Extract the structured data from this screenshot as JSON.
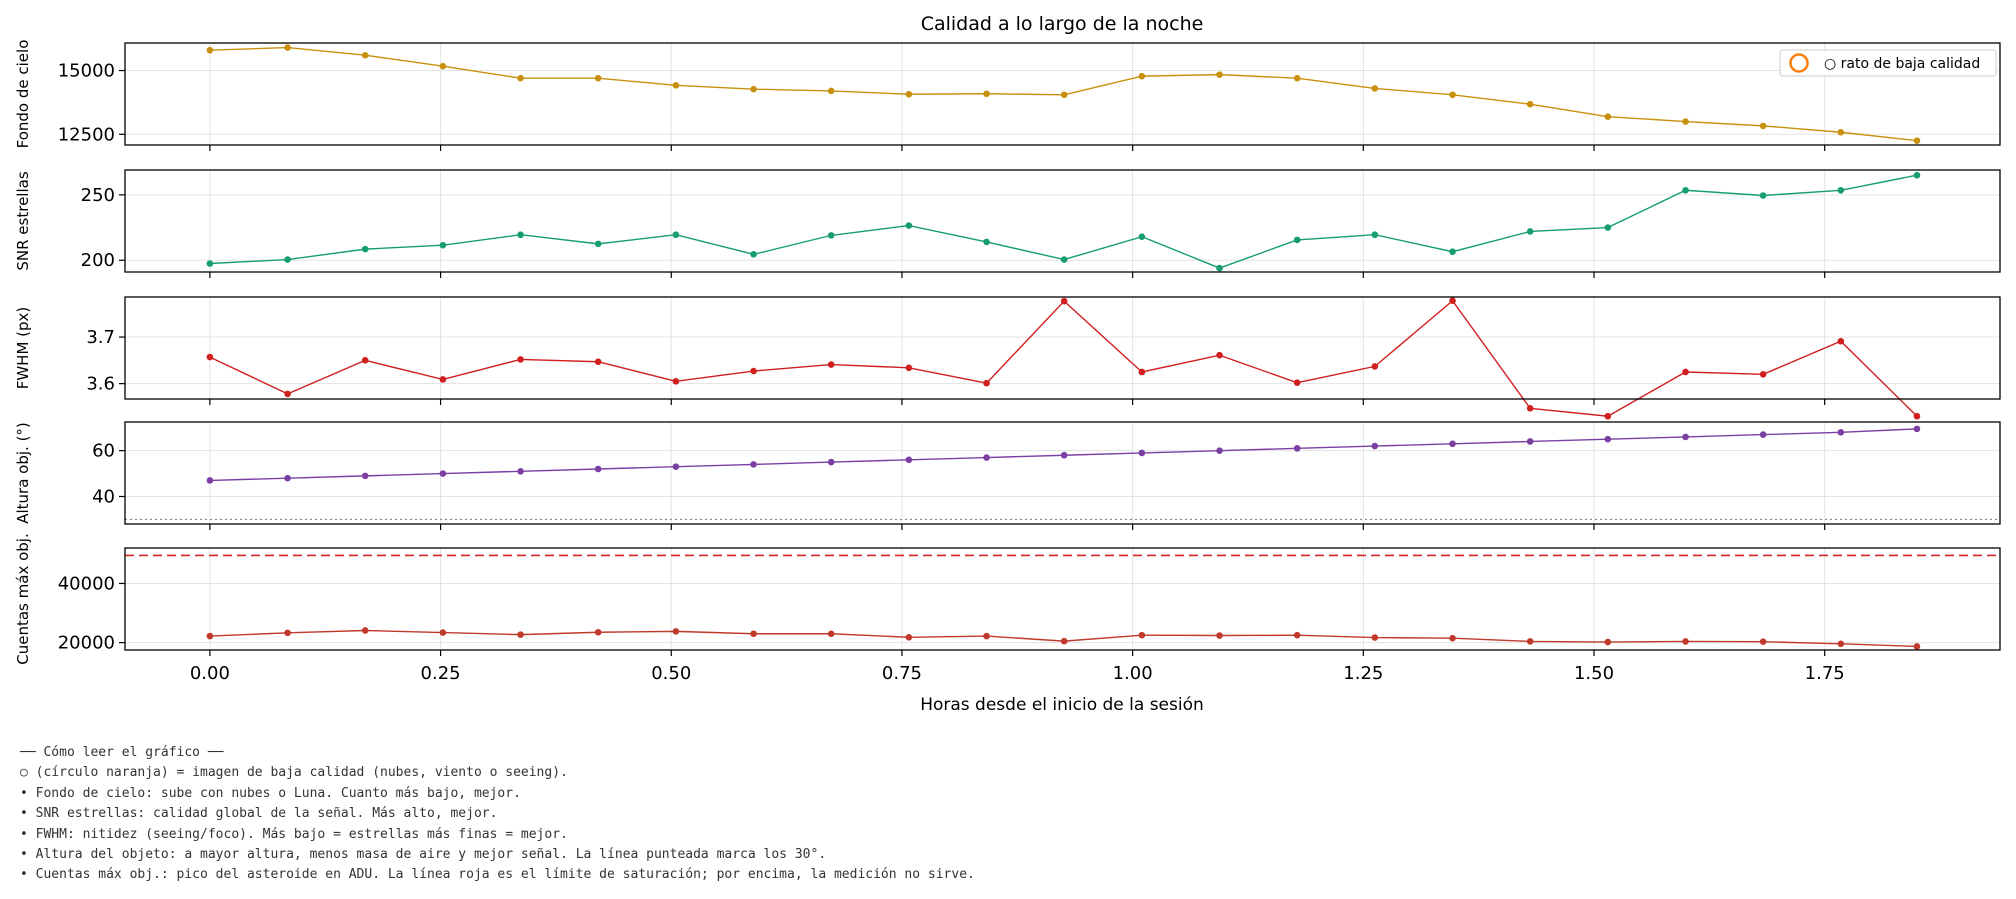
{
  "chart_data": {
    "type": "line",
    "title": "Calidad a lo largo de la noche",
    "xlabel": "Horas desde el inicio de la sesión",
    "xlim": [
      -0.092,
      1.94
    ],
    "xticks": [
      0.0,
      0.25,
      0.5,
      0.75,
      1.0,
      1.25,
      1.5,
      1.75
    ],
    "xtick_labels": [
      "0.00",
      "0.25",
      "0.50",
      "0.75",
      "1.00",
      "1.25",
      "1.50",
      "1.75"
    ],
    "x": [
      0.0,
      0.0842,
      0.1683,
      0.2525,
      0.3367,
      0.4208,
      0.505,
      0.5892,
      0.6733,
      0.7575,
      0.8417,
      0.9258,
      1.01,
      1.0942,
      1.1783,
      1.2625,
      1.3467,
      1.4308,
      1.515,
      1.5992,
      1.6833,
      1.7675,
      1.85
    ],
    "grid": true,
    "legend": {
      "label": "○ rato de baja calidad",
      "placement": "top-right",
      "marker_color": "#ff7f0e"
    },
    "panels": [
      {
        "name": "fondo",
        "ylabel": "Fondo de cielo",
        "color": "#c8900d",
        "ylim": [
          12080,
          16080
        ],
        "yticks": [
          12500,
          15000
        ],
        "ytick_labels": [
          "12500",
          "15000"
        ],
        "values": [
          15800,
          15900,
          15600,
          15170,
          14700,
          14700,
          14420,
          14270,
          14200,
          14070,
          14090,
          14050,
          14780,
          14840,
          14700,
          14300,
          14050,
          13680,
          13190,
          13000,
          12830,
          12580,
          12250
        ]
      },
      {
        "name": "snr",
        "ylabel": "SNR estrellas",
        "color": "#169e72",
        "ylim": [
          191,
          269
        ],
        "yticks": [
          200,
          250
        ],
        "ytick_labels": [
          "200",
          "250"
        ],
        "values": [
          197.5,
          200.5,
          208.5,
          211.5,
          219.5,
          212.5,
          219.5,
          204.5,
          219.0,
          226.5,
          214.0,
          200.5,
          218.0,
          194.0,
          215.5,
          219.5,
          206.5,
          222.0,
          225.0,
          253.5,
          249.5,
          253.5,
          265.0
        ]
      },
      {
        "name": "fwhm",
        "ylabel": "FWHM (px)",
        "color": "#d11f1f",
        "ylim": [
          3.567,
          3.786
        ],
        "yticks": [
          3.6,
          3.7
        ],
        "ytick_labels": [
          "3.6",
          "3.7"
        ],
        "values": [
          3.657,
          3.578,
          3.65,
          3.609,
          3.652,
          3.647,
          3.605,
          3.627,
          3.641,
          3.634,
          3.601,
          3.777,
          3.625,
          3.661,
          3.602,
          3.637,
          3.778,
          3.547,
          3.53,
          3.625,
          3.62,
          3.691,
          3.53
        ]
      },
      {
        "name": "altura",
        "ylabel": "Altura obj. (°)",
        "color": "#7b3fa4",
        "ylim": [
          28,
          72.5
        ],
        "yticks": [
          40,
          60
        ],
        "ytick_labels": [
          "40",
          "60"
        ],
        "values": [
          47,
          48,
          49,
          50,
          51,
          52,
          53,
          54,
          55,
          56,
          57,
          58,
          59,
          60,
          61,
          62,
          63,
          64,
          65,
          66,
          67,
          68,
          69.5
        ],
        "threshold": {
          "value": 30,
          "style": "dotted",
          "color": "#888888"
        }
      },
      {
        "name": "cuentas",
        "ylabel": "Cuentas máx obj.",
        "color": "#c03a2b",
        "ylim": [
          17500,
          52000
        ],
        "yticks": [
          20000,
          40000
        ],
        "ytick_labels": [
          "20000",
          "40000"
        ],
        "values": [
          22200,
          23300,
          24100,
          23400,
          22700,
          23500,
          23800,
          23000,
          23000,
          21800,
          22200,
          20500,
          22500,
          22400,
          22500,
          21700,
          21500,
          20400,
          20200,
          20400,
          20300,
          19600,
          18700
        ],
        "threshold": {
          "value": 49500,
          "style": "dashed",
          "color": "#d62728"
        }
      }
    ]
  },
  "notes": [
    "── Cómo leer el gráfico ──",
    "○ (círculo naranja) = imagen de baja calidad (nubes, viento o seeing).",
    "• Fondo de cielo: sube con nubes o Luna. Cuanto más bajo, mejor.",
    "• SNR estrellas: calidad global de la señal. Más alto, mejor.",
    "• FWHM: nitidez (seeing/foco). Más bajo = estrellas más finas = mejor.",
    "• Altura del objeto: a mayor altura, menos masa de aire y mejor señal. La línea punteada marca los 30°.",
    "• Cuentas máx obj.: pico del asteroide en ADU. La línea roja es el límite de saturación; por encima, la medición no sirve."
  ]
}
